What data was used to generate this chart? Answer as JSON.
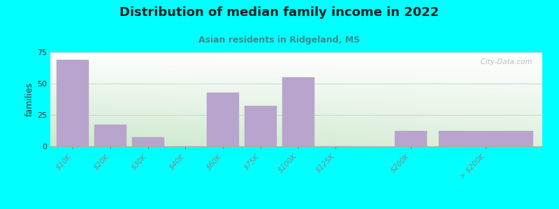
{
  "title": "Distribution of median family income in 2022",
  "subtitle": "Asian residents in Ridgeland, MS",
  "ylabel": "families",
  "background_outer": "#00FFFF",
  "background_inner_top_right": "#ffffff",
  "background_inner_bottom_left": "#cce8cc",
  "bar_color": "#b8a4cc",
  "bar_edge_color": "#b8a4cc",
  "categories": [
    "$10K",
    "$20K",
    "$30K",
    "$40K",
    "$60K",
    "$75K",
    "$100K",
    "$125K",
    "$200K",
    "> $200K"
  ],
  "values": [
    69,
    17,
    7,
    0,
    43,
    32,
    55,
    0,
    12,
    12
  ],
  "ylim": [
    0,
    75
  ],
  "yticks": [
    0,
    25,
    50,
    75
  ],
  "watermark": "  City-Data.com",
  "bar_positions": [
    0,
    1,
    2,
    3,
    4,
    5,
    6,
    7,
    9,
    11
  ],
  "bar_width": 0.85,
  "figsize": [
    8.0,
    3.0
  ],
  "dpi": 100,
  "title_fontsize": 13,
  "subtitle_fontsize": 9,
  "subtitle_color": "#448888",
  "title_color": "#222222"
}
